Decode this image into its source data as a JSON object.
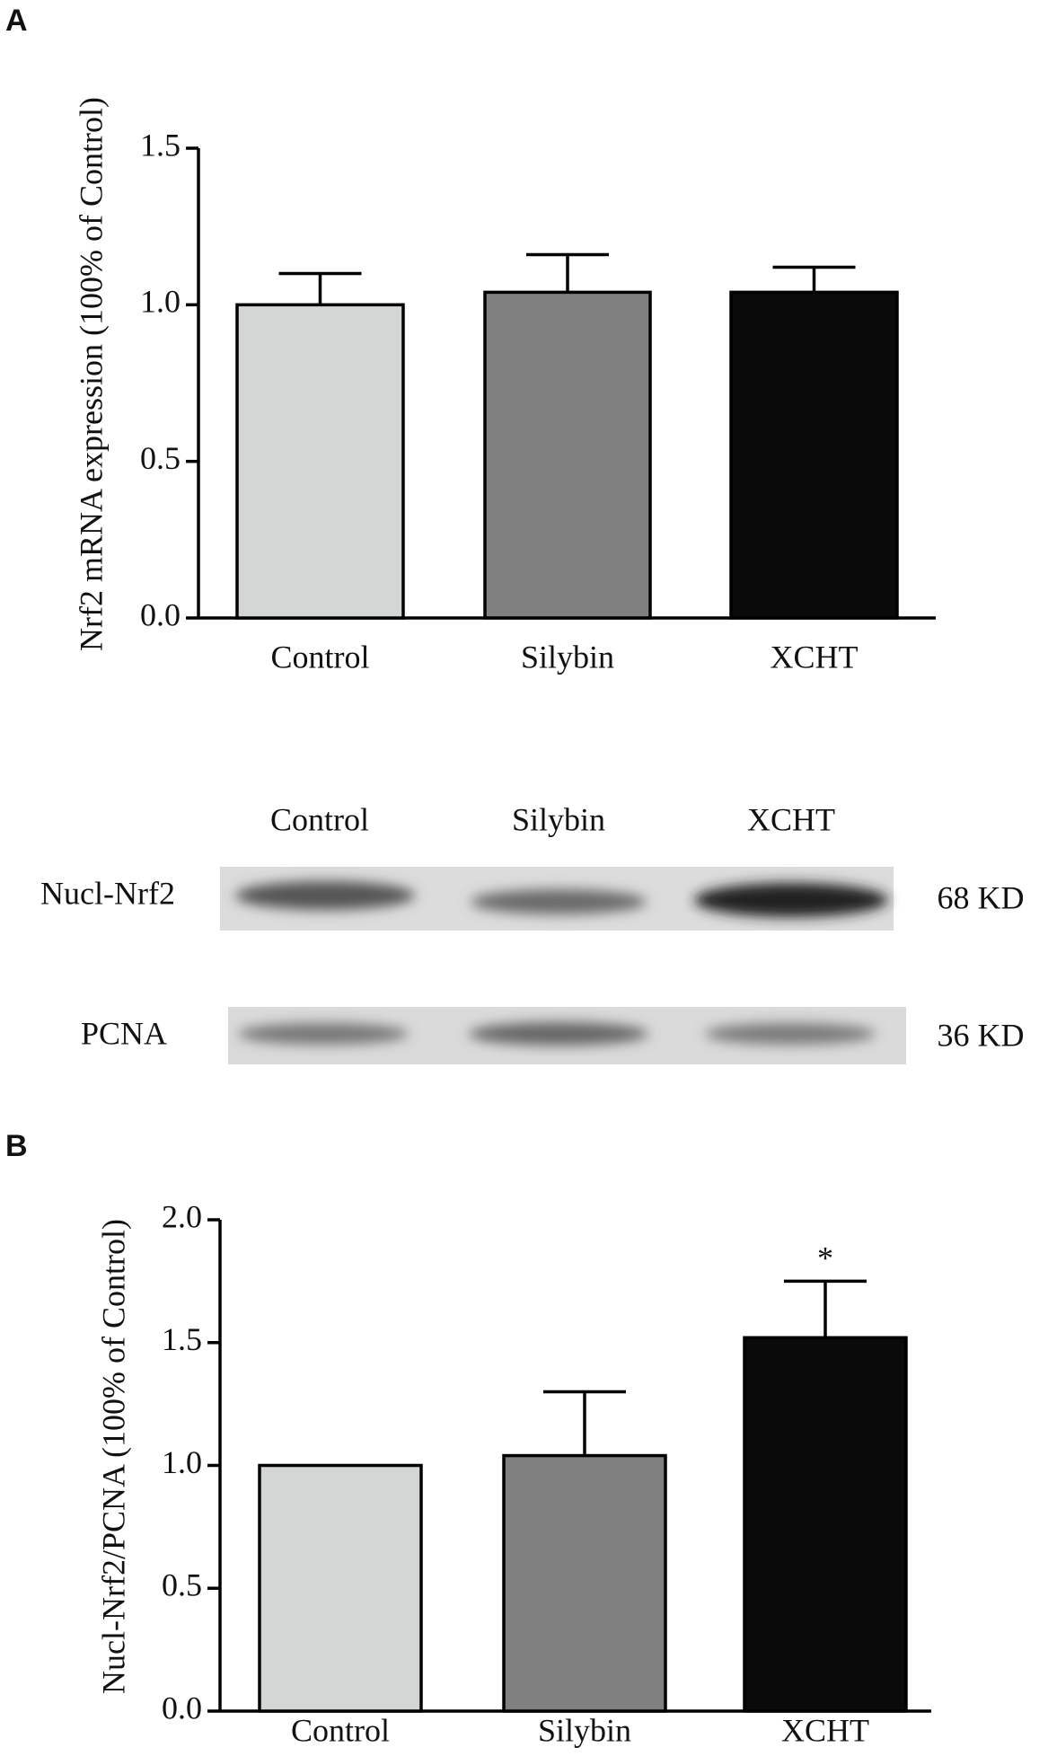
{
  "panel_labels": [
    "A",
    "B"
  ],
  "blot": {
    "lanes": [
      "Control",
      "Silybin",
      "XCHT"
    ],
    "rows": [
      {
        "label": "Nucl-Nrf2",
        "size": "68 KD"
      },
      {
        "label": "PCNA",
        "size": "36 KD"
      }
    ]
  },
  "chart_data": [
    {
      "type": "bar",
      "ylabel": "Nrf2 mRNA expression (100% of Control)",
      "categories": [
        "Control",
        "Silybin",
        "XCHT"
      ],
      "values": [
        1.0,
        1.04,
        1.04
      ],
      "errors": [
        0.1,
        0.12,
        0.08
      ],
      "colors": [
        "#d4d6d5",
        "#808080",
        "#0a0a0a"
      ],
      "ylim": [
        0,
        1.5
      ],
      "yticks": [
        {
          "value": 0,
          "label": "0.0"
        },
        0.5,
        {
          "value": 1,
          "label": "1.0"
        },
        1.5
      ]
    },
    {
      "type": "bar",
      "ylabel": "Nucl-Nrf2/PCNA (100% of Control)",
      "categories": [
        "Control",
        "Silybin",
        "XCHT"
      ],
      "values": [
        1.0,
        1.04,
        1.52
      ],
      "errors": [
        0,
        0.26,
        0.23
      ],
      "colors": [
        "#d4d6d5",
        "#808080",
        "#0a0a0a"
      ],
      "ylim": [
        0,
        2
      ],
      "yticks": [
        {
          "value": 0,
          "label": "0.0"
        },
        0.5,
        {
          "value": 1,
          "label": "1.0"
        },
        1.5,
        {
          "value": 2,
          "label": "2.0"
        }
      ],
      "annotations": [
        {
          "text": "*",
          "category": "XCHT"
        }
      ]
    }
  ]
}
